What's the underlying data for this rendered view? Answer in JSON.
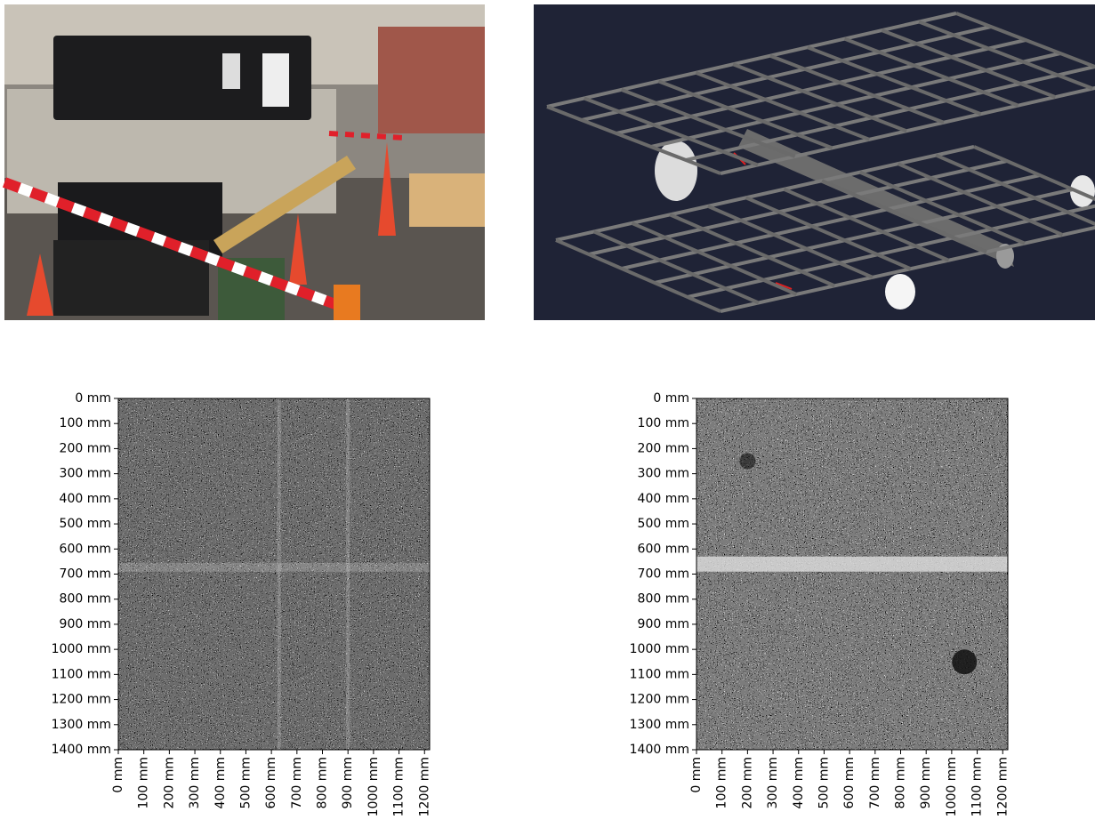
{
  "chart_data": [
    {
      "type": "image",
      "xlim": [
        0,
        1220
      ],
      "ylim": [
        0,
        1400
      ],
      "xticks": [
        {
          "value": 0,
          "label": "0 mm"
        },
        {
          "value": 100,
          "label": "100 mm"
        },
        {
          "value": 200,
          "label": "200 mm"
        },
        {
          "value": 300,
          "label": "300 mm"
        },
        {
          "value": 400,
          "label": "400 mm"
        },
        {
          "value": 500,
          "label": "500 mm"
        },
        {
          "value": 600,
          "label": "600 mm"
        },
        {
          "value": 700,
          "label": "700 mm"
        },
        {
          "value": 800,
          "label": "800 mm"
        },
        {
          "value": 900,
          "label": "900 mm"
        },
        {
          "value": 1000,
          "label": "1000 mm"
        },
        {
          "value": 1100,
          "label": "1100 mm"
        },
        {
          "value": 1200,
          "label": "1200 mm"
        }
      ],
      "yticks": [
        {
          "value": 0,
          "label": "0 mm"
        },
        {
          "value": 100,
          "label": "100 mm"
        },
        {
          "value": 200,
          "label": "200 mm"
        },
        {
          "value": 300,
          "label": "300 mm"
        },
        {
          "value": 400,
          "label": "400 mm"
        },
        {
          "value": 500,
          "label": "500 mm"
        },
        {
          "value": 600,
          "label": "600 mm"
        },
        {
          "value": 700,
          "label": "700 mm"
        },
        {
          "value": 800,
          "label": "800 mm"
        },
        {
          "value": 900,
          "label": "900 mm"
        },
        {
          "value": 1000,
          "label": "1000 mm"
        },
        {
          "value": 1100,
          "label": "1100 mm"
        },
        {
          "value": 1200,
          "label": "1200 mm"
        },
        {
          "value": 1300,
          "label": "1300 mm"
        },
        {
          "value": 1400,
          "label": "1400 mm"
        }
      ]
    },
    {
      "type": "image",
      "xlim": [
        0,
        1220
      ],
      "ylim": [
        0,
        1400
      ],
      "xticks": [
        {
          "value": 0,
          "label": "0 mm"
        },
        {
          "value": 100,
          "label": "100 mm"
        },
        {
          "value": 200,
          "label": "200 mm"
        },
        {
          "value": 300,
          "label": "300 mm"
        },
        {
          "value": 400,
          "label": "400 mm"
        },
        {
          "value": 500,
          "label": "500 mm"
        },
        {
          "value": 600,
          "label": "600 mm"
        },
        {
          "value": 700,
          "label": "700 mm"
        },
        {
          "value": 800,
          "label": "800 mm"
        },
        {
          "value": 900,
          "label": "900 mm"
        },
        {
          "value": 1000,
          "label": "1000 mm"
        },
        {
          "value": 1100,
          "label": "1100 mm"
        },
        {
          "value": 1200,
          "label": "1200 mm"
        }
      ],
      "yticks": [
        {
          "value": 0,
          "label": "0 mm"
        },
        {
          "value": 100,
          "label": "100 mm"
        },
        {
          "value": 200,
          "label": "200 mm"
        },
        {
          "value": 300,
          "label": "300 mm"
        },
        {
          "value": 400,
          "label": "400 mm"
        },
        {
          "value": 500,
          "label": "500 mm"
        },
        {
          "value": 600,
          "label": "600 mm"
        },
        {
          "value": 700,
          "label": "700 mm"
        },
        {
          "value": 800,
          "label": "800 mm"
        },
        {
          "value": 900,
          "label": "900 mm"
        },
        {
          "value": 1000,
          "label": "1000 mm"
        },
        {
          "value": 1100,
          "label": "1100 mm"
        },
        {
          "value": 1200,
          "label": "1200 mm"
        },
        {
          "value": 1300,
          "label": "1300 mm"
        },
        {
          "value": 1400,
          "label": "1400 mm"
        }
      ]
    }
  ]
}
